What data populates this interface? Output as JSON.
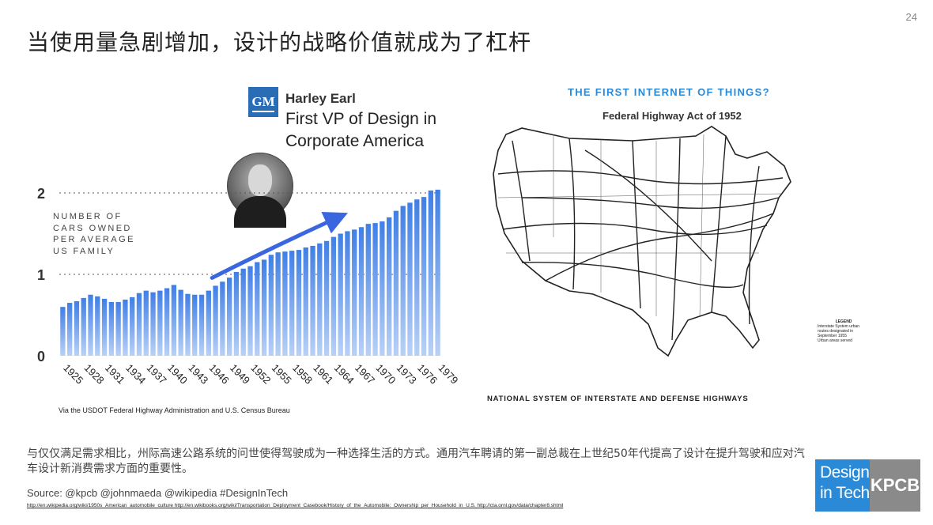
{
  "page": {
    "number": "24",
    "title": "当使用量急剧增加，设计的战略价值就成为了杠杆"
  },
  "person": {
    "logo_text": "GM",
    "name": "Harley Earl",
    "role": "First VP of Design in Corporate America"
  },
  "chart_data": {
    "type": "bar",
    "title": "",
    "ylabel": "NUMBER OF CARS OWNED PER AVERAGE US FAMILY",
    "xlabel": "",
    "ylim": [
      0,
      2
    ],
    "yticks": [
      "0",
      "1",
      "2"
    ],
    "grid": "dotted lines at 1 and 2",
    "color": "#3f7fe6",
    "xtick_labels": [
      "1925",
      "1928",
      "1931",
      "1934",
      "1937",
      "1940",
      "1943",
      "1946",
      "1949",
      "1952",
      "1955",
      "1958",
      "1961",
      "1964",
      "1967",
      "1970",
      "1973",
      "1976",
      "1979"
    ],
    "categories": [
      1925,
      1926,
      1927,
      1928,
      1929,
      1930,
      1931,
      1932,
      1933,
      1934,
      1935,
      1936,
      1937,
      1938,
      1939,
      1940,
      1941,
      1942,
      1943,
      1944,
      1945,
      1946,
      1947,
      1948,
      1949,
      1950,
      1951,
      1952,
      1953,
      1954,
      1955,
      1956,
      1957,
      1958,
      1959,
      1960,
      1961,
      1962,
      1963,
      1964,
      1965,
      1966,
      1967,
      1968,
      1969,
      1970,
      1971,
      1972,
      1973,
      1974,
      1975,
      1976,
      1977,
      1978,
      1979
    ],
    "values": [
      0.6,
      0.65,
      0.67,
      0.71,
      0.75,
      0.73,
      0.7,
      0.66,
      0.66,
      0.69,
      0.72,
      0.77,
      0.8,
      0.78,
      0.8,
      0.83,
      0.87,
      0.81,
      0.76,
      0.75,
      0.75,
      0.8,
      0.86,
      0.91,
      0.96,
      1.03,
      1.07,
      1.1,
      1.15,
      1.18,
      1.24,
      1.27,
      1.28,
      1.29,
      1.3,
      1.33,
      1.35,
      1.38,
      1.41,
      1.46,
      1.5,
      1.53,
      1.55,
      1.58,
      1.62,
      1.63,
      1.65,
      1.7,
      1.78,
      1.84,
      1.88,
      1.92,
      1.95,
      2.03,
      2.04
    ],
    "source": "Via the USDOT Federal Highway Administration and U.S. Census Bureau"
  },
  "map": {
    "title": "THE FIRST INTERNET OF THINGS?",
    "subtitle": "Federal Highway Act of 1952",
    "caption": "NATIONAL SYSTEM OF INTERSTATE AND DEFENSE HIGHWAYS",
    "legend_title": "LEGEND",
    "legend_line": "Interstate System urban routes designated in September 1955",
    "legend_marker": "Urban areas served"
  },
  "footer": {
    "body": "与仅仅满足需求相比，州际高速公路系统的问世使得驾驶成为一种选择生活的方式。通用汽车聘请的第一副总裁在上世纪50年代提高了设计在提升驾驶和应对汽车设计新消费需求方面的重要性。",
    "source": "Source: @kpcb @johnmaeda @wikipedia #DesignInTech",
    "links": "http://en.wikipedia.org/wiki/1950s_American_automobile_culture   http://en.wikibooks.org/wiki/Transportation_Deployment_Casebook/History_of_the_Automobile:_Ownership_per_Household_in_U.S.   http://cta.ornl.gov/data/chapter8.shtml"
  },
  "logos": {
    "design_line1": "Design",
    "design_line2": "in Tech",
    "kpcb": "KPCB"
  }
}
